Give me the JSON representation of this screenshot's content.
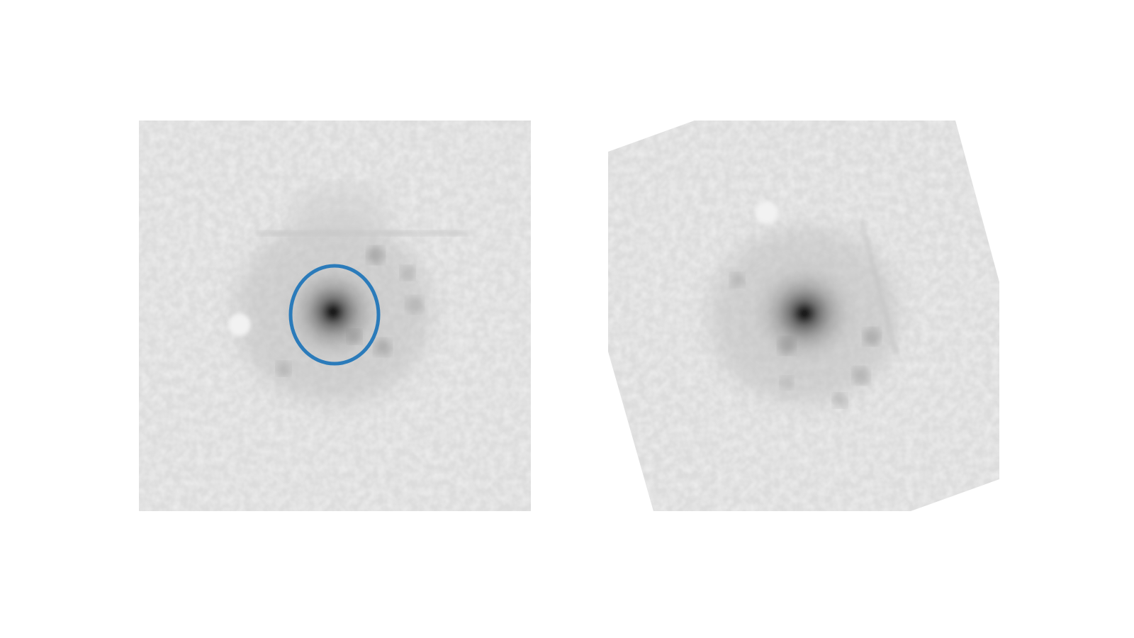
{
  "figure": {
    "panels": [
      {
        "id": "left",
        "description_icon": "galaxy-image",
        "overlay": {
          "shape": "ellipse",
          "color": "#2b7bba"
        }
      },
      {
        "id": "right",
        "description_icon": "galaxy-image-rotated"
      }
    ],
    "colors": {
      "background": "#ffffff",
      "sky": "#dedede",
      "core": "#000000",
      "annotation": "#2b7bba"
    }
  }
}
